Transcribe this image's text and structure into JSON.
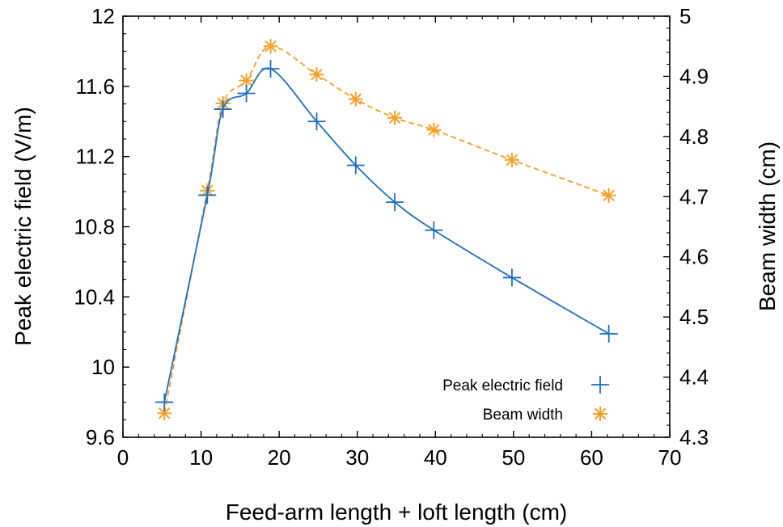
{
  "chart_data": {
    "type": "line",
    "xlabel": "Feed-arm length + loft length (cm)",
    "ylabel": "Peak electric field (V/m)",
    "y2label": "Beam width (cm)",
    "xlim": [
      0,
      70
    ],
    "ylim": [
      9.6,
      12
    ],
    "y2lim": [
      4.3,
      5
    ],
    "x_ticks": [
      "0",
      "10",
      "20",
      "30",
      "40",
      "50",
      "60",
      "70"
    ],
    "y_ticks": [
      "9.6",
      "10",
      "10.4",
      "10.8",
      "11.2",
      "11.6",
      "12"
    ],
    "y2_ticks": [
      "4.3",
      "4.4",
      "4.5",
      "4.6",
      "4.7",
      "4.8",
      "4.9",
      "5"
    ],
    "grid": false,
    "legend_position": "bottom-right",
    "series": [
      {
        "name": "Peak electric field",
        "axis": "left",
        "color": "#1f6fbf",
        "marker": "plus",
        "line_style": "solid",
        "x": [
          5.3,
          10.8,
          12.8,
          15.8,
          18.9,
          24.8,
          29.8,
          34.8,
          39.8,
          49.8,
          62.2
        ],
        "values": [
          9.8,
          10.98,
          11.47,
          11.56,
          11.7,
          11.4,
          11.15,
          10.94,
          10.78,
          10.51,
          10.19
        ]
      },
      {
        "name": "Beam width",
        "axis": "right",
        "color": "#f5a02a",
        "marker": "asterisk",
        "line_style": "dashed",
        "x": [
          5.3,
          10.8,
          12.8,
          15.8,
          18.9,
          24.8,
          29.8,
          34.8,
          39.8,
          49.8,
          62.2
        ],
        "values": [
          4.34,
          4.71,
          4.855,
          4.893,
          4.95,
          4.903,
          4.862,
          4.831,
          4.811,
          4.761,
          4.702
        ]
      }
    ]
  }
}
